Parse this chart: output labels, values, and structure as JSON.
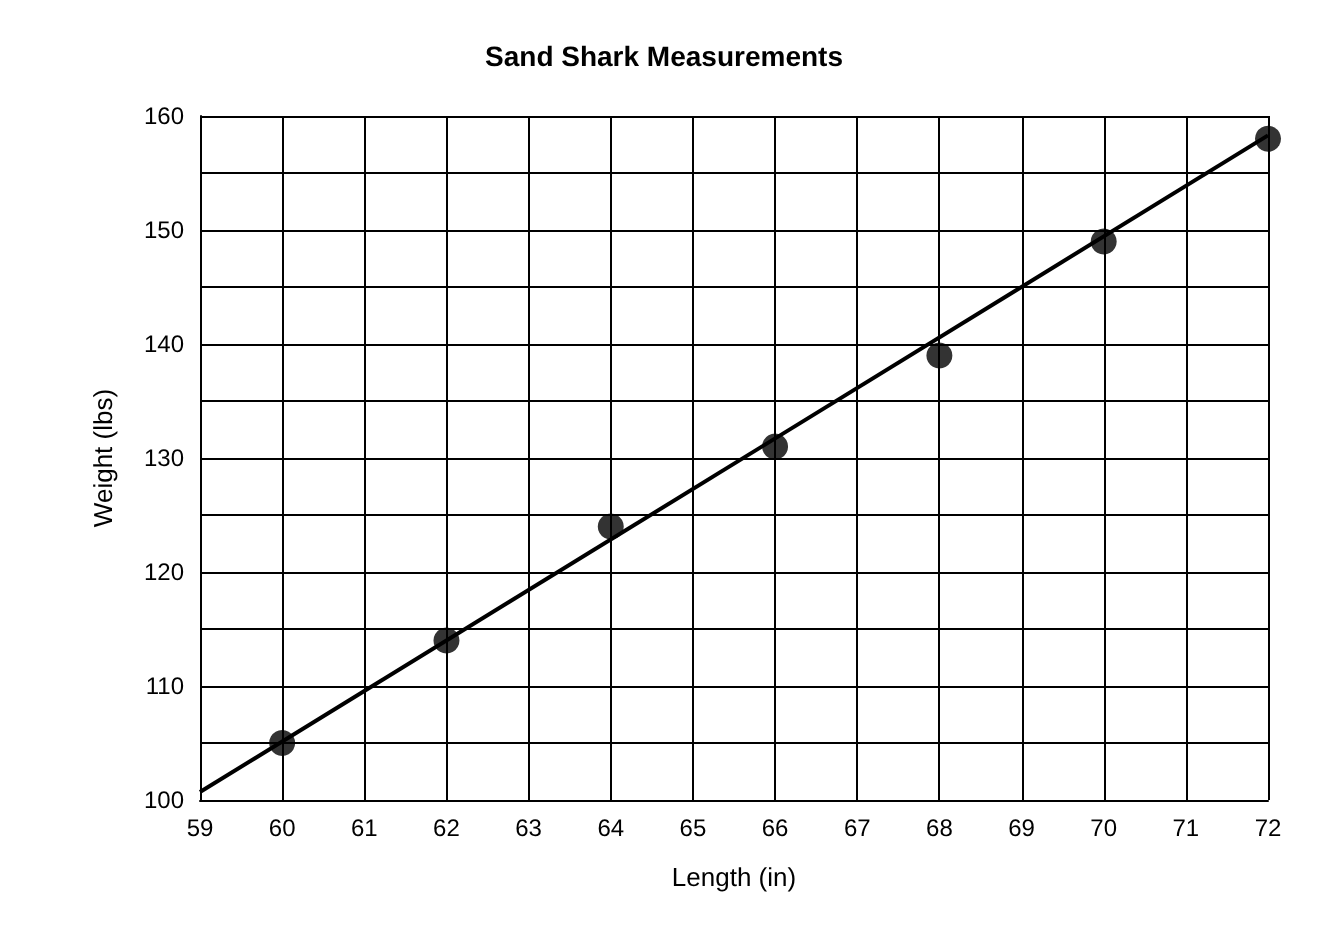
{
  "chart_data": {
    "type": "scatter",
    "title": "Sand Shark Measurements",
    "xlabel": "Length (in)",
    "ylabel": "Weight (lbs)",
    "x": [
      60,
      62,
      64,
      66,
      68,
      70,
      72
    ],
    "series": [
      {
        "color": "#000000",
        "marker": "circle",
        "values": [
          105,
          114,
          124,
          131,
          139,
          149,
          158
        ]
      },
      {
        "type": "line",
        "color": "#000000",
        "marker": "none",
        "x": [
          59,
          72
        ],
        "values": [
          100.7,
          158.3
        ]
      }
    ],
    "xlim": [
      59,
      72
    ],
    "xticks": [
      59,
      60,
      61,
      62,
      63,
      64,
      65,
      66,
      67,
      68,
      69,
      70,
      71,
      72
    ],
    "ylim": [
      100,
      160
    ],
    "yticks": [
      100,
      {
        "value": 105,
        "label": null
      },
      110,
      {
        "value": 115,
        "label": null
      },
      120,
      {
        "value": 125,
        "label": null
      },
      130,
      {
        "value": 135,
        "label": null
      },
      140,
      {
        "value": 145,
        "label": null
      },
      150,
      {
        "value": 155,
        "label": null
      },
      160
    ],
    "grid": true
  }
}
